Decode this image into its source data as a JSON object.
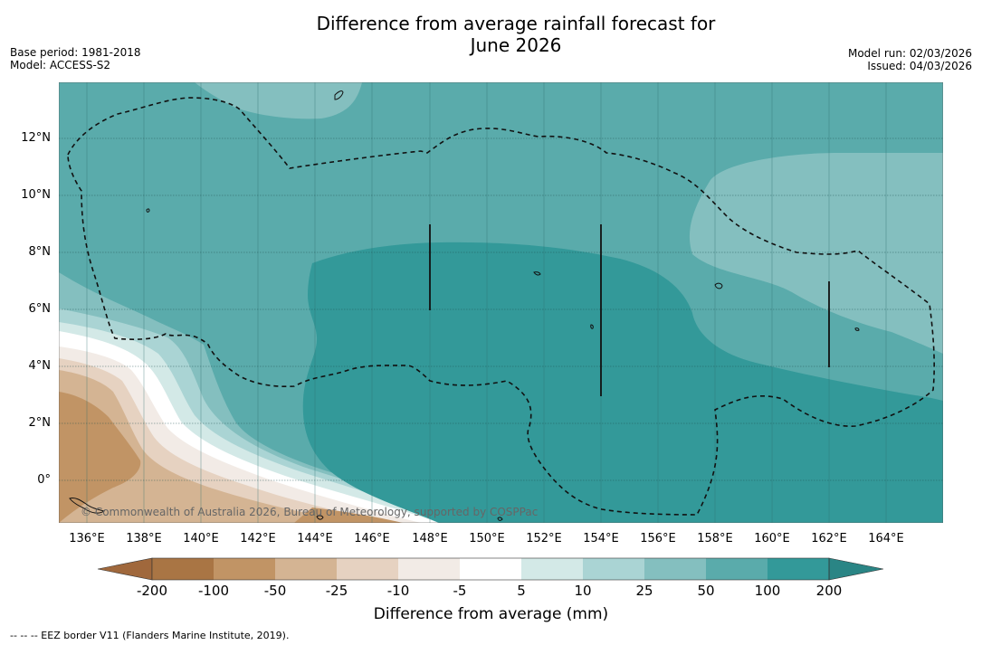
{
  "title_line1": "Difference from average rainfall forecast for",
  "title_line2": "June 2026",
  "meta": {
    "base_period": "Base period: 1981-2018",
    "model": "Model: ACCESS-S2",
    "model_run": "Model run: 02/03/2026",
    "issued": "Issued: 04/03/2026"
  },
  "map": {
    "latitude_ticks": [
      "12°N",
      "10°N",
      "8°N",
      "6°N",
      "4°N",
      "2°N",
      "0°"
    ],
    "longitude_ticks": [
      "136°E",
      "138°E",
      "140°E",
      "142°E",
      "144°E",
      "146°E",
      "148°E",
      "150°E",
      "152°E",
      "154°E",
      "156°E",
      "158°E",
      "160°E",
      "162°E",
      "164°E"
    ],
    "copyright": "© Commonwealth of Australia 2026, Bureau of Meteorology, supported by COSPPac",
    "colors": {
      "level_100_200": "#339999",
      "level_50_100": "#5aabab",
      "level_25_50": "#84bfbf",
      "level_10_25": "#aad4d4",
      "level_5_10": "#d3e9e7",
      "level_m5_5": "#ffffff",
      "level_m10_m5": "#f2ebe6",
      "level_m25_m10": "#e6d2c1",
      "level_m50_m25": "#d4b493",
      "level_m100_m50": "#c19465"
    }
  },
  "colorbar": {
    "labels": [
      "-200",
      "-100",
      "-50",
      "-25",
      "-10",
      "-5",
      "5",
      "10",
      "25",
      "50",
      "100",
      "200"
    ],
    "colors": [
      "#a97544",
      "#c19465",
      "#d4b493",
      "#e6d2c1",
      "#f2ebe6",
      "#ffffff",
      "#d3e9e7",
      "#aad4d4",
      "#84bfbf",
      "#5aabab",
      "#339999"
    ],
    "low_extend_color": "#a0683c",
    "high_extend_color": "#2a8585",
    "title": "Difference from average (mm)"
  },
  "footnote": "--  --  -- EEZ border V11 (Flanders Marine Institute, 2019)."
}
